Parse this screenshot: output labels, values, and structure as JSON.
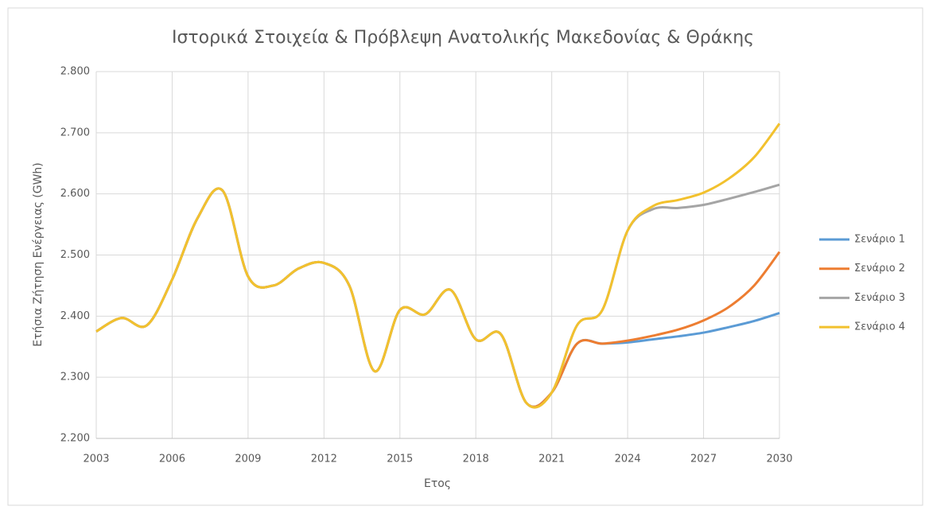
{
  "chart_data": {
    "type": "line",
    "title": "Ιστορικά Στοιχεία & Πρόβλεψη Ανατολικής Μακεδονίας & Θράκης",
    "x_label": "Ετος",
    "y_label": "Ετήσια Ζήτηση Ενέργειας (GWh)",
    "x": [
      2003,
      2004,
      2005,
      2006,
      2007,
      2008,
      2009,
      2010,
      2011,
      2012,
      2013,
      2014,
      2015,
      2016,
      2017,
      2018,
      2019,
      2020,
      2021,
      2022,
      2023,
      2024,
      2025,
      2026,
      2027,
      2028,
      2029,
      2030
    ],
    "series": [
      {
        "name": "Σενάριο 1",
        "color": "#5b9bd5",
        "values": [
          2375,
          2397,
          2385,
          2460,
          2560,
          2605,
          2465,
          2450,
          2478,
          2487,
          2450,
          2310,
          2410,
          2403,
          2443,
          2362,
          2370,
          2258,
          2275,
          2355,
          2355,
          2357,
          2362,
          2367,
          2373,
          2382,
          2392,
          2405
        ]
      },
      {
        "name": "Σενάριο 2",
        "color": "#ed7d31",
        "values": [
          2375,
          2397,
          2385,
          2460,
          2560,
          2605,
          2465,
          2450,
          2478,
          2487,
          2450,
          2310,
          2410,
          2403,
          2443,
          2362,
          2370,
          2258,
          2275,
          2355,
          2355,
          2360,
          2368,
          2378,
          2393,
          2415,
          2450,
          2505
        ]
      },
      {
        "name": "Σενάριο 3",
        "color": "#a5a5a5",
        "values": [
          2375,
          2397,
          2385,
          2460,
          2560,
          2605,
          2465,
          2450,
          2478,
          2487,
          2450,
          2310,
          2410,
          2403,
          2443,
          2362,
          2370,
          2258,
          2275,
          2385,
          2410,
          2540,
          2575,
          2577,
          2582,
          2592,
          2603,
          2615
        ]
      },
      {
        "name": "Σενάριο 4",
        "color": "#f2c12e",
        "values": [
          2375,
          2397,
          2385,
          2460,
          2560,
          2605,
          2465,
          2450,
          2478,
          2487,
          2450,
          2310,
          2410,
          2403,
          2443,
          2362,
          2370,
          2258,
          2275,
          2385,
          2410,
          2540,
          2580,
          2590,
          2602,
          2625,
          2660,
          2715
        ]
      }
    ],
    "xlim": [
      2003,
      2030
    ],
    "xticks": [
      2003,
      2006,
      2009,
      2012,
      2015,
      2018,
      2021,
      2024,
      2027,
      2030
    ],
    "ylim": [
      2200,
      2800
    ],
    "yticks": [
      {
        "value": 2200,
        "label": "2.200"
      },
      {
        "value": 2300,
        "label": "2.300"
      },
      {
        "value": 2400,
        "label": "2.400"
      },
      {
        "value": 2500,
        "label": "2.500"
      },
      {
        "value": 2600,
        "label": "2.600"
      },
      {
        "value": 2700,
        "label": "2.700"
      },
      {
        "value": 2800,
        "label": "2.800"
      }
    ],
    "grid": true,
    "legend": "right"
  }
}
